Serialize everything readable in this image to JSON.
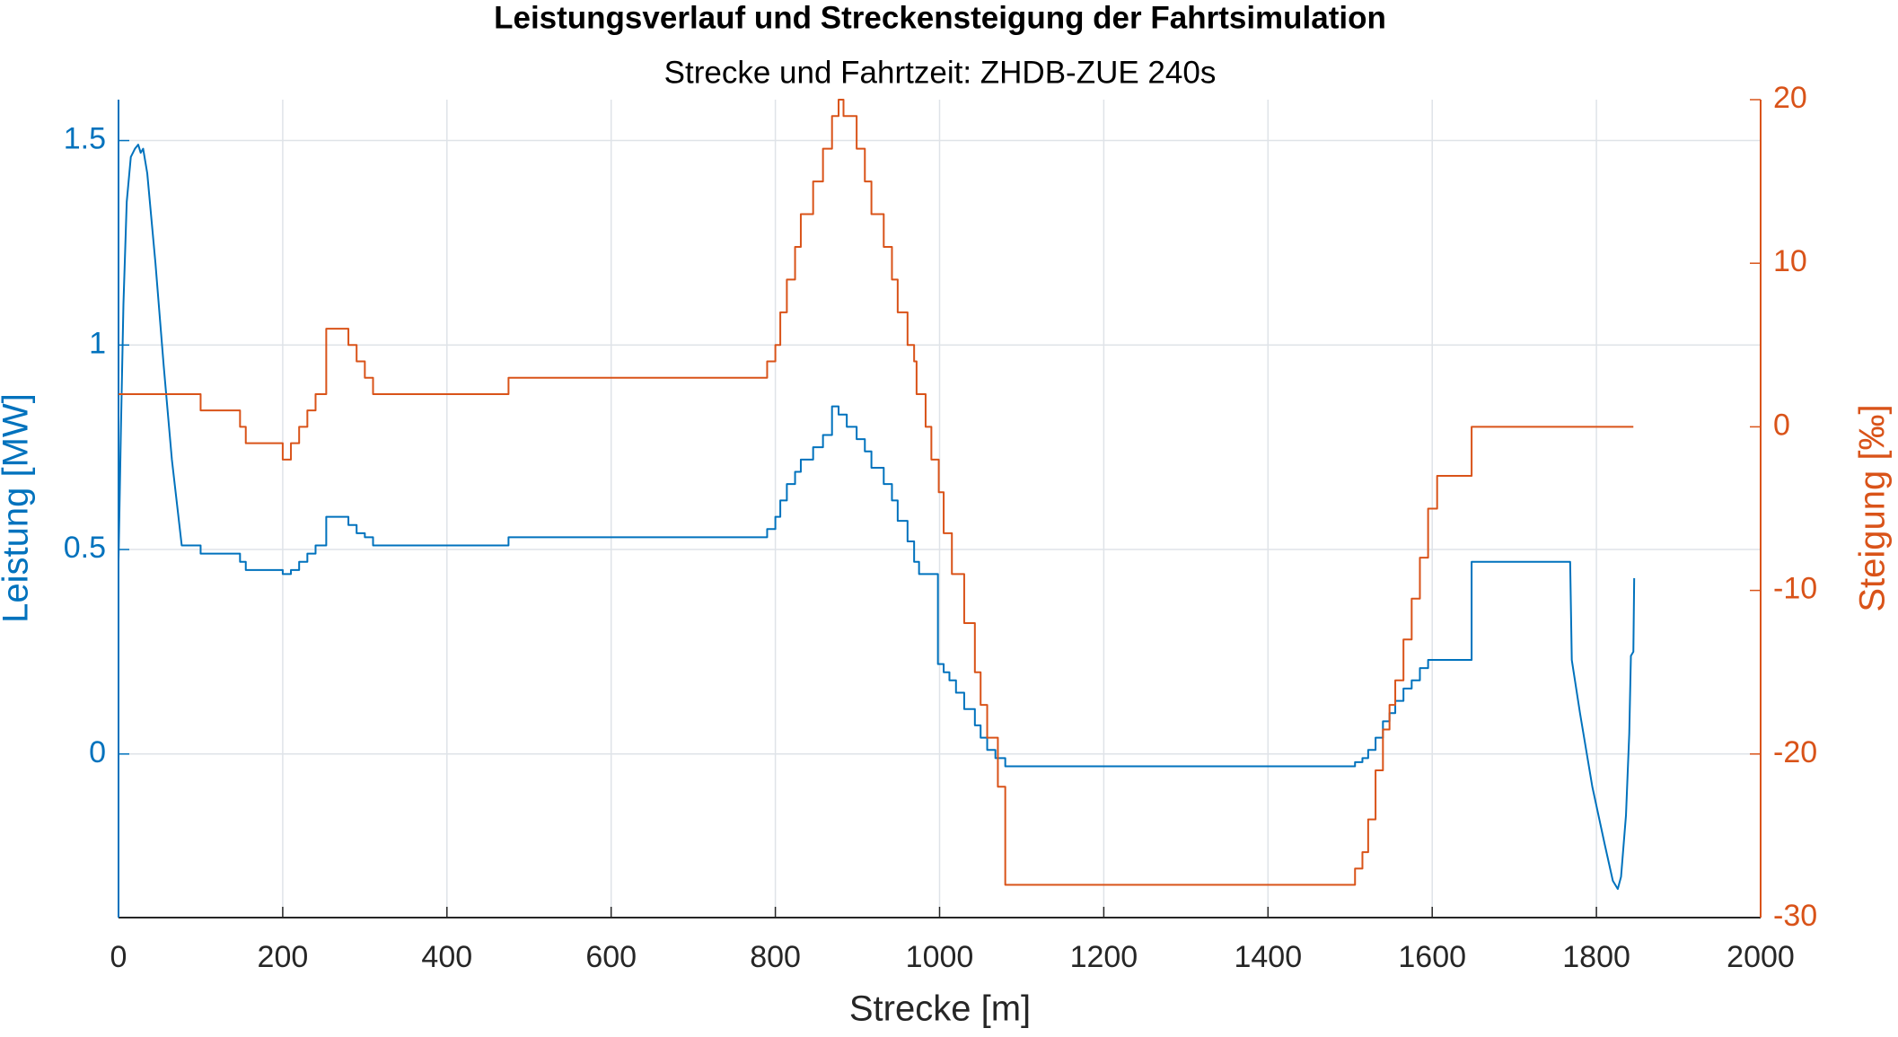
{
  "chart_data": {
    "type": "line",
    "title": "Leistungsverlauf und Streckensteigung der Fahrtsimulation",
    "subtitle": "Strecke und Fahrtzeit: ZHDB-ZUE 240s",
    "xlabel": "Strecke [m]",
    "ylabel": "Leistung [MW]",
    "y2label": "Steigung [‰]",
    "xlim": [
      0,
      2000
    ],
    "xticks": [
      0,
      200,
      400,
      600,
      800,
      1000,
      1200,
      1400,
      1600,
      1800,
      2000
    ],
    "ylim": [
      -0.4,
      1.6
    ],
    "yticks": [
      0,
      0.5,
      1,
      1.5
    ],
    "y2lim": [
      -30,
      20
    ],
    "y2ticks": [
      -30,
      -20,
      -10,
      0,
      10,
      20
    ],
    "grid": true,
    "series": [
      {
        "color": "#0072BD",
        "axis": "y",
        "x": [
          0,
          3,
          6,
          10,
          15,
          20,
          24,
          27,
          30,
          35,
          45,
          55,
          65,
          77,
          100,
          100,
          148,
          148,
          155,
          155,
          200,
          200,
          210,
          210,
          220,
          220,
          230,
          230,
          240,
          240,
          253,
          253,
          280,
          280,
          290,
          290,
          300,
          300,
          310,
          310,
          475,
          475,
          790,
          790,
          800,
          800,
          806,
          806,
          814,
          814,
          824,
          824,
          831,
          831,
          846,
          846,
          858,
          858,
          869,
          869,
          877,
          877,
          887,
          887,
          899,
          899,
          909,
          909,
          917,
          917,
          932,
          932,
          942,
          942,
          949,
          949,
          961,
          961,
          969,
          969,
          975,
          975,
          998,
          998,
          1005,
          1005,
          1012,
          1012,
          1020,
          1020,
          1030,
          1030,
          1043,
          1043,
          1050,
          1050,
          1058,
          1058,
          1068,
          1068,
          1080,
          1080,
          1506,
          1506,
          1515,
          1515,
          1522,
          1522,
          1531,
          1531,
          1540,
          1540,
          1548,
          1548,
          1555,
          1555,
          1565,
          1565,
          1575,
          1575,
          1585,
          1585,
          1595,
          1595,
          1648,
          1648,
          1768,
          1770,
          1780,
          1795,
          1810,
          1820,
          1826,
          1830,
          1836,
          1840,
          1842,
          1845,
          1846
        ],
        "values": [
          0.47,
          0.8,
          1.1,
          1.35,
          1.46,
          1.48,
          1.49,
          1.47,
          1.48,
          1.42,
          1.2,
          0.95,
          0.72,
          0.51,
          0.51,
          0.49,
          0.49,
          0.47,
          0.47,
          0.45,
          0.45,
          0.44,
          0.44,
          0.45,
          0.45,
          0.47,
          0.47,
          0.49,
          0.49,
          0.51,
          0.51,
          0.58,
          0.58,
          0.56,
          0.56,
          0.54,
          0.54,
          0.53,
          0.53,
          0.51,
          0.51,
          0.53,
          0.53,
          0.55,
          0.55,
          0.58,
          0.58,
          0.62,
          0.62,
          0.66,
          0.66,
          0.69,
          0.69,
          0.72,
          0.72,
          0.75,
          0.75,
          0.78,
          0.78,
          0.85,
          0.85,
          0.83,
          0.83,
          0.8,
          0.8,
          0.77,
          0.77,
          0.74,
          0.74,
          0.7,
          0.7,
          0.66,
          0.66,
          0.62,
          0.62,
          0.57,
          0.57,
          0.52,
          0.52,
          0.47,
          0.47,
          0.44,
          0.44,
          0.22,
          0.22,
          0.2,
          0.2,
          0.18,
          0.18,
          0.15,
          0.15,
          0.11,
          0.11,
          0.07,
          0.07,
          0.04,
          0.04,
          0.01,
          0.01,
          -0.01,
          -0.01,
          -0.03,
          -0.03,
          -0.02,
          -0.02,
          -0.01,
          -0.01,
          0.01,
          0.01,
          0.04,
          0.04,
          0.08,
          0.08,
          0.1,
          0.1,
          0.13,
          0.13,
          0.16,
          0.16,
          0.18,
          0.18,
          0.21,
          0.21,
          0.23,
          0.23,
          0.47,
          0.47,
          0.23,
          0.1,
          -0.08,
          -0.22,
          -0.31,
          -0.33,
          -0.3,
          -0.15,
          0.05,
          0.24,
          0.25,
          0.43
        ]
      },
      {
        "color": "#D95319",
        "axis": "y2",
        "x": [
          0,
          100,
          100,
          148,
          148,
          155,
          155,
          200,
          200,
          210,
          210,
          220,
          220,
          230,
          230,
          240,
          240,
          253,
          253,
          280,
          280,
          290,
          290,
          300,
          300,
          310,
          310,
          475,
          475,
          790,
          790,
          800,
          800,
          806,
          806,
          814,
          814,
          824,
          824,
          831,
          831,
          846,
          846,
          858,
          858,
          869,
          869,
          877,
          877,
          883,
          883,
          899,
          899,
          909,
          909,
          917,
          917,
          932,
          932,
          942,
          942,
          949,
          949,
          961,
          961,
          969,
          969,
          972,
          972,
          983,
          983,
          990,
          990,
          999,
          999,
          1005,
          1005,
          1015,
          1015,
          1030,
          1030,
          1043,
          1043,
          1050,
          1050,
          1058,
          1058,
          1071,
          1071,
          1080,
          1080,
          1506,
          1506,
          1515,
          1515,
          1522,
          1522,
          1531,
          1531,
          1540,
          1540,
          1548,
          1548,
          1555,
          1555,
          1565,
          1565,
          1575,
          1575,
          1585,
          1585,
          1595,
          1595,
          1606,
          1606,
          1648,
          1648,
          1845
        ],
        "values": [
          2,
          2,
          1,
          1,
          0,
          0,
          -1,
          -1,
          -2,
          -2,
          -1,
          -1,
          0,
          0,
          1,
          1,
          2,
          2,
          6,
          6,
          5,
          5,
          4,
          4,
          3,
          3,
          2,
          2,
          3,
          3,
          4,
          4,
          5,
          5,
          7,
          7,
          9,
          9,
          11,
          11,
          13,
          13,
          15,
          15,
          17,
          17,
          19,
          19,
          20,
          20,
          19,
          19,
          17,
          17,
          15,
          15,
          13,
          13,
          11,
          11,
          9,
          9,
          7,
          7,
          5,
          5,
          4,
          4,
          2,
          2,
          0,
          0,
          -2,
          -2,
          -4,
          -4,
          -6.5,
          -6.5,
          -9,
          -9,
          -12,
          -12,
          -15,
          -15,
          -17,
          -17,
          -19,
          -19,
          -22,
          -22,
          -28,
          -28,
          -27,
          -27,
          -26,
          -26,
          -24,
          -24,
          -21,
          -21,
          -18.5,
          -18.5,
          -17,
          -17,
          -15.5,
          -15.5,
          -13,
          -13,
          -10.5,
          -10.5,
          -8,
          -8,
          -5,
          -5,
          -3,
          -3,
          0,
          0
        ]
      }
    ]
  }
}
